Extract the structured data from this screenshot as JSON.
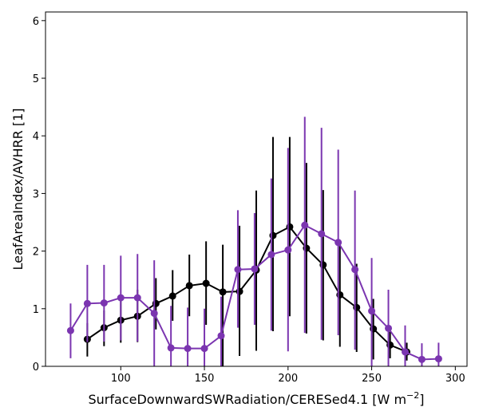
{
  "chart_data": {
    "type": "line",
    "xlabel": "SurfaceDownwardSWRadiation/CERESed4.1 [W m",
    "xlabel_sup": "−2",
    "xlabel_end": "]",
    "ylabel": "LeafAreaIndex/AVHRR [1]",
    "xlim": [
      55,
      307
    ],
    "ylim": [
      0,
      6.15
    ],
    "xticks": [
      100,
      150,
      200,
      250,
      300
    ],
    "xtick_labels": [
      "100",
      "150",
      "200",
      "250",
      "300"
    ],
    "yticks": [
      0,
      1,
      2,
      3,
      4,
      5,
      6
    ],
    "ytick_labels": [
      "0",
      "1",
      "2",
      "3",
      "4",
      "5",
      "6"
    ],
    "grid": false,
    "legend": "none",
    "series": [
      {
        "color": "#000000",
        "x": [
          80,
          90,
          100,
          110,
          121,
          131,
          141,
          151,
          161,
          171,
          181,
          191,
          201,
          211,
          221,
          231,
          241,
          251,
          261,
          271
        ],
        "y": [
          0.47,
          0.67,
          0.8,
          0.87,
          1.09,
          1.22,
          1.4,
          1.44,
          1.29,
          1.3,
          1.67,
          2.27,
          2.42,
          2.05,
          1.76,
          1.24,
          1.02,
          0.65,
          0.37,
          0.25
        ],
        "err_low": [
          0.17,
          0.35,
          0.41,
          0.42,
          0.64,
          0.79,
          0.87,
          0.72,
          0.0,
          0.18,
          0.27,
          0.61,
          0.87,
          0.57,
          0.45,
          0.34,
          0.25,
          0.12,
          0.14,
          0.1
        ],
        "err_high": [
          0.75,
          0.97,
          1.21,
          1.33,
          1.53,
          1.67,
          1.94,
          2.17,
          2.11,
          2.44,
          3.05,
          3.98,
          3.98,
          3.53,
          3.06,
          2.15,
          1.78,
          1.17,
          0.6,
          0.41
        ]
      },
      {
        "color": "#7b35b0",
        "x": [
          70,
          80,
          90,
          100,
          110,
          120,
          130,
          140,
          150,
          160,
          170,
          180,
          190,
          200,
          210,
          220,
          230,
          240,
          250,
          260,
          270,
          280,
          290
        ],
        "y": [
          0.62,
          1.09,
          1.1,
          1.19,
          1.19,
          0.92,
          0.32,
          0.31,
          0.31,
          0.53,
          1.68,
          1.69,
          1.94,
          2.02,
          2.45,
          2.3,
          2.15,
          1.68,
          0.96,
          0.66,
          0.25,
          0.12,
          0.13
        ],
        "err_low": [
          0.14,
          0.42,
          0.43,
          0.45,
          0.43,
          0.0,
          0.0,
          0.0,
          0.0,
          0.0,
          0.67,
          0.72,
          0.62,
          0.26,
          0.58,
          0.46,
          0.54,
          0.29,
          0.0,
          0.0,
          0.0,
          0.0,
          0.0
        ],
        "err_high": [
          1.09,
          1.76,
          1.76,
          1.92,
          1.95,
          1.84,
          1.05,
          1.02,
          1.0,
          1.21,
          2.71,
          2.66,
          3.26,
          3.79,
          4.33,
          4.14,
          3.76,
          3.05,
          1.88,
          1.33,
          0.71,
          0.4,
          0.41
        ]
      }
    ]
  }
}
